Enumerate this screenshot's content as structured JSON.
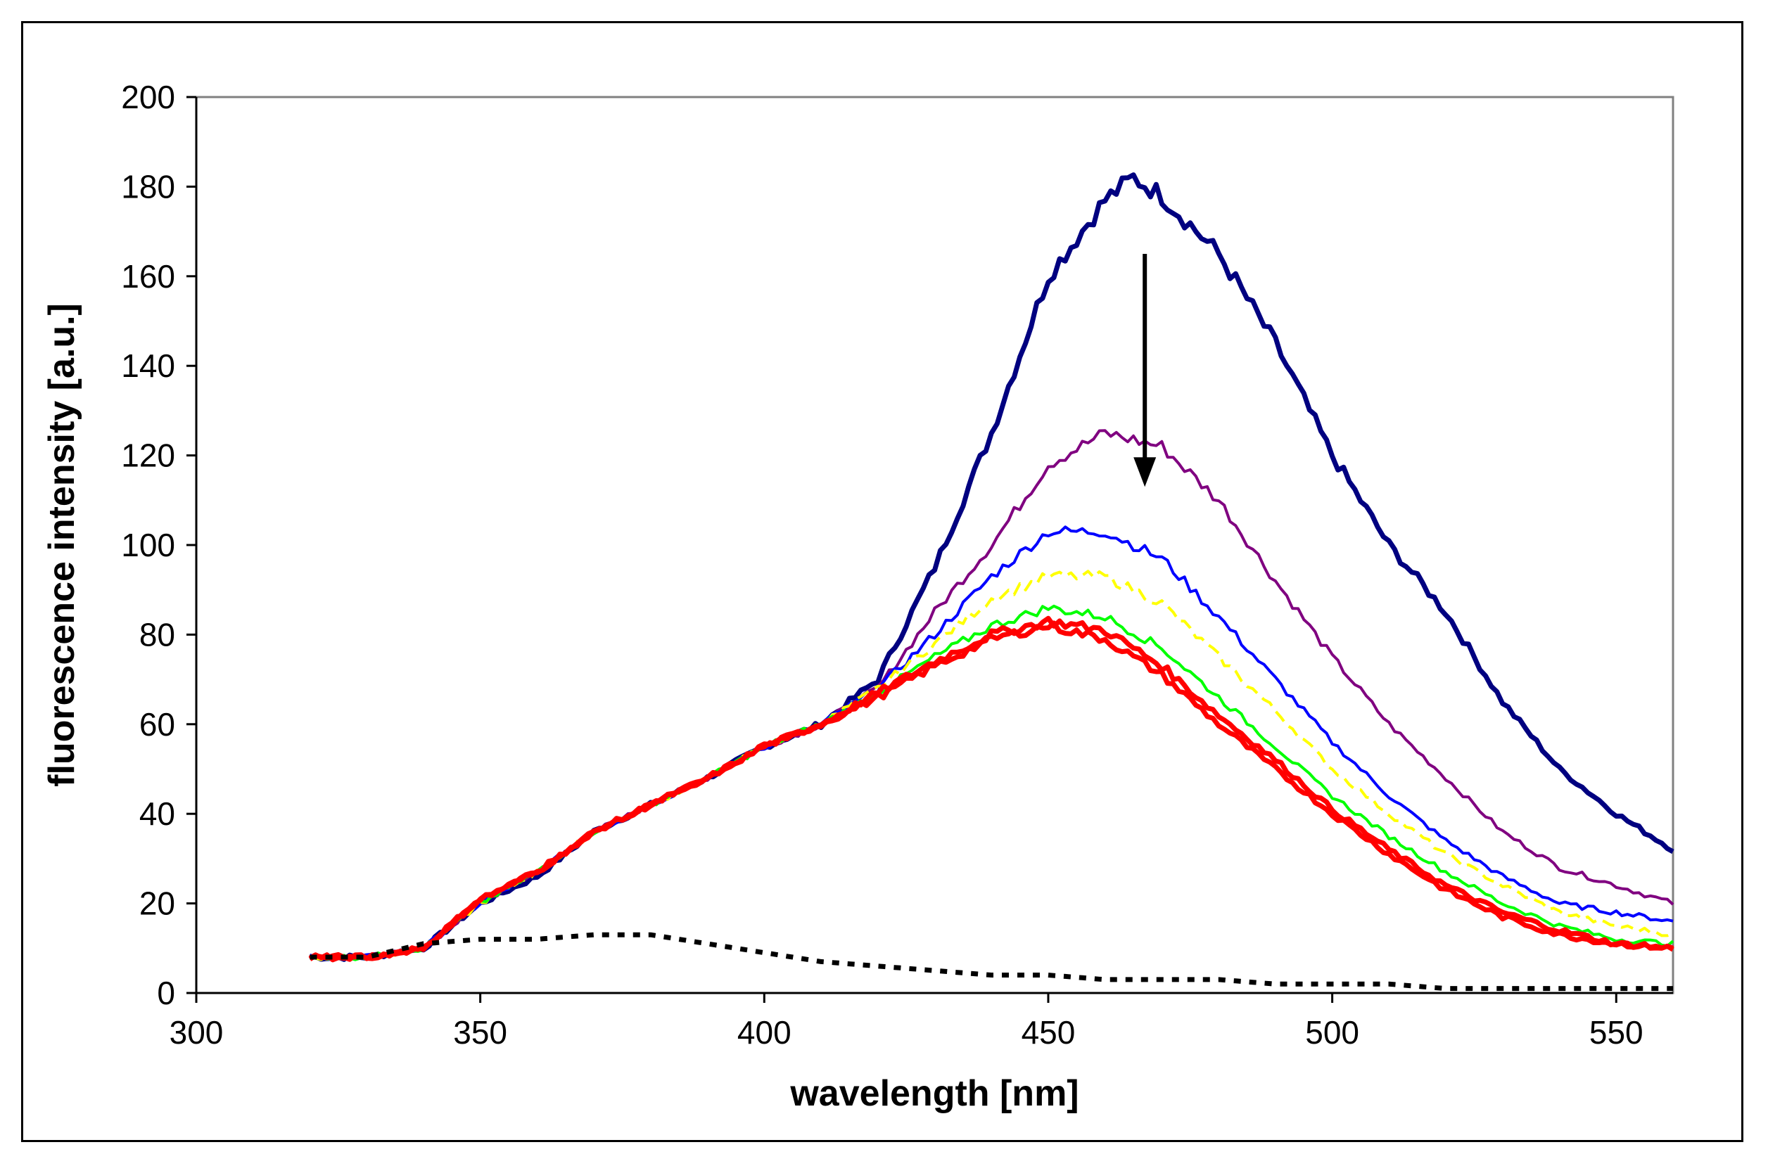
{
  "chart_data": {
    "type": "line",
    "title": "",
    "xlabel": "wavelength [nm]",
    "ylabel": "fluorescence intensity [a.u.]",
    "xlim": [
      300,
      560
    ],
    "ylim": [
      0,
      200
    ],
    "xticks": [
      300,
      350,
      400,
      450,
      500,
      550
    ],
    "yticks": [
      0,
      20,
      40,
      60,
      80,
      100,
      120,
      140,
      160,
      180,
      200
    ],
    "grid": false,
    "legend": "none",
    "annotations": [
      {
        "type": "arrow",
        "x": 467,
        "y_start": 165,
        "y_end": 113,
        "direction": "down",
        "meaning": "decreasing intensity"
      }
    ],
    "series": [
      {
        "name": "series-1",
        "color": "#000080",
        "style": "solid-thick",
        "x": [
          320,
          330,
          340,
          350,
          360,
          370,
          380,
          390,
          400,
          410,
          420,
          430,
          440,
          450,
          460,
          465,
          470,
          480,
          490,
          500,
          510,
          520,
          530,
          540,
          550,
          560
        ],
        "y": [
          8,
          8,
          10,
          20,
          26,
          36,
          42,
          48,
          55,
          60,
          70,
          95,
          125,
          160,
          177,
          182,
          178,
          165,
          145,
          120,
          100,
          85,
          65,
          50,
          40,
          32
        ]
      },
      {
        "name": "series-2",
        "color": "#800080",
        "style": "solid",
        "x": [
          320,
          330,
          340,
          350,
          360,
          370,
          380,
          390,
          400,
          410,
          420,
          430,
          440,
          450,
          460,
          470,
          480,
          490,
          500,
          510,
          520,
          530,
          540,
          550,
          560
        ],
        "y": [
          8,
          8,
          10,
          20,
          27,
          36,
          42,
          48,
          55,
          60,
          68,
          85,
          100,
          118,
          125,
          122,
          110,
          92,
          75,
          60,
          48,
          36,
          28,
          24,
          20
        ]
      },
      {
        "name": "series-3",
        "color": "#0000ff",
        "style": "solid",
        "x": [
          320,
          330,
          340,
          350,
          360,
          370,
          380,
          390,
          400,
          410,
          420,
          430,
          440,
          450,
          460,
          470,
          480,
          490,
          500,
          510,
          520,
          530,
          540,
          550,
          560
        ],
        "y": [
          8,
          8,
          10,
          20,
          27,
          36,
          42,
          48,
          55,
          60,
          68,
          80,
          93,
          103,
          103,
          97,
          84,
          70,
          56,
          44,
          34,
          26,
          20,
          18,
          16
        ]
      },
      {
        "name": "series-4",
        "color": "#ffff00",
        "style": "dashed",
        "x": [
          320,
          330,
          340,
          350,
          360,
          370,
          380,
          390,
          400,
          410,
          420,
          430,
          440,
          450,
          460,
          470,
          480,
          490,
          500,
          510,
          520,
          530,
          540,
          550,
          560
        ],
        "y": [
          8,
          8,
          10,
          20,
          27,
          36,
          42,
          48,
          55,
          60,
          68,
          78,
          88,
          93,
          93,
          87,
          75,
          63,
          50,
          40,
          31,
          24,
          18,
          15,
          13
        ]
      },
      {
        "name": "series-5",
        "color": "#00ff00",
        "style": "solid",
        "x": [
          320,
          330,
          340,
          350,
          360,
          370,
          380,
          390,
          400,
          410,
          420,
          430,
          440,
          450,
          460,
          470,
          480,
          490,
          500,
          510,
          520,
          530,
          540,
          550,
          560
        ],
        "y": [
          8,
          8,
          10,
          20,
          27,
          36,
          42,
          48,
          55,
          60,
          67,
          75,
          82,
          86,
          84,
          77,
          66,
          55,
          44,
          35,
          27,
          20,
          15,
          12,
          11
        ]
      },
      {
        "name": "series-6",
        "color": "#ff0000",
        "style": "solid-thick",
        "x": [
          320,
          330,
          340,
          350,
          360,
          370,
          380,
          390,
          400,
          410,
          420,
          430,
          440,
          450,
          460,
          470,
          480,
          490,
          500,
          510,
          520,
          530,
          540,
          550,
          560
        ],
        "y": [
          8,
          8,
          10,
          21,
          27,
          36,
          42,
          48,
          55,
          60,
          67,
          74,
          80,
          83,
          81,
          73,
          62,
          52,
          41,
          32,
          24,
          18,
          14,
          11,
          10
        ]
      },
      {
        "name": "series-7",
        "color": "#ff0000",
        "style": "solid-thick",
        "x": [
          320,
          330,
          340,
          350,
          360,
          370,
          380,
          390,
          400,
          410,
          420,
          430,
          440,
          450,
          460,
          470,
          480,
          490,
          500,
          510,
          520,
          530,
          540,
          550,
          560
        ],
        "y": [
          8,
          8,
          10,
          21,
          27,
          36,
          42,
          48,
          55,
          60,
          66,
          73,
          79,
          82,
          79,
          71,
          60,
          50,
          40,
          31,
          23,
          17,
          13,
          11,
          10
        ]
      },
      {
        "name": "series-8",
        "color": "#000000",
        "style": "dotted-thick",
        "x": [
          320,
          330,
          340,
          350,
          360,
          370,
          380,
          390,
          400,
          410,
          420,
          430,
          440,
          450,
          460,
          470,
          480,
          490,
          500,
          510,
          520,
          530,
          540,
          550,
          560
        ],
        "y": [
          8,
          8,
          11,
          12,
          12,
          13,
          13,
          11,
          9,
          7,
          6,
          5,
          4,
          4,
          3,
          3,
          3,
          2,
          2,
          2,
          1,
          1,
          1,
          1,
          1
        ]
      }
    ]
  }
}
